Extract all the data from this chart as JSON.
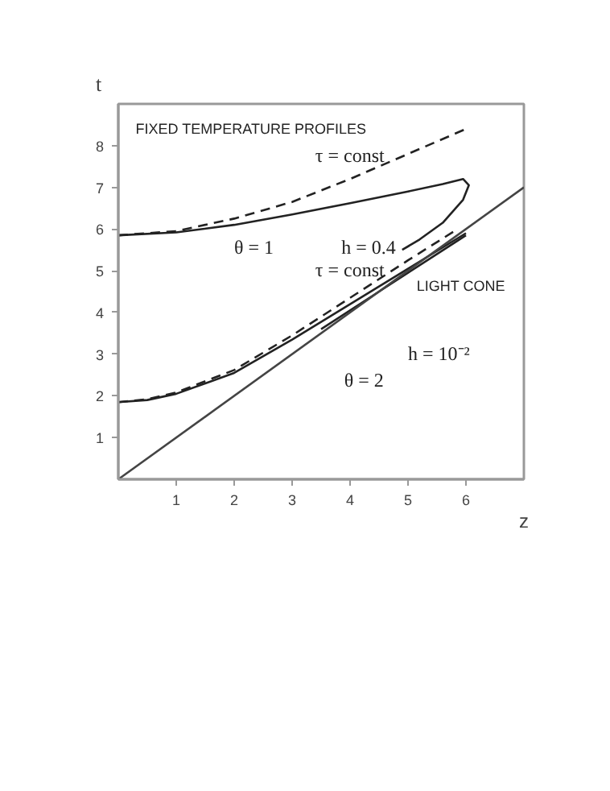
{
  "chart_data": {
    "type": "line",
    "xlabel": "z",
    "ylabel": "t",
    "xlim": [
      0,
      7
    ],
    "ylim": [
      0,
      9
    ],
    "xticks": [
      1,
      2,
      3,
      4,
      5,
      6
    ],
    "yticks": [
      1,
      2,
      3,
      4,
      5,
      6,
      7,
      8
    ],
    "grid": false,
    "marker": "none",
    "series": [
      {
        "color": "#222222",
        "line_style": "solid",
        "x": [
          0,
          1,
          2,
          3,
          4,
          5,
          5.6,
          5.95,
          6.05,
          5.95,
          5.6,
          5.2,
          4.9
        ],
        "values": [
          5.85,
          5.92,
          6.1,
          6.35,
          6.62,
          6.9,
          7.08,
          7.2,
          7.05,
          6.7,
          6.15,
          5.75,
          5.5
        ]
      },
      {
        "color": "#222222",
        "line_style": "dashed",
        "x": [
          0,
          1,
          2,
          3,
          4,
          5,
          6
        ],
        "values": [
          5.85,
          5.95,
          6.25,
          6.65,
          7.2,
          7.8,
          8.4
        ]
      },
      {
        "color": "#222222",
        "line_style": "solid",
        "x": [
          0,
          0.5,
          1,
          2,
          3,
          4,
          5,
          6
        ],
        "values": [
          1.85,
          1.9,
          2.05,
          2.55,
          3.35,
          4.2,
          5.05,
          5.9
        ]
      },
      {
        "color": "#222222",
        "line_style": "dashed",
        "x": [
          0,
          0.5,
          1,
          2,
          3,
          4,
          5,
          5.8
        ],
        "values": [
          1.85,
          1.92,
          2.08,
          2.62,
          3.45,
          4.35,
          5.25,
          5.95
        ]
      },
      {
        "color": "#222222",
        "line_style": "solid",
        "x": [
          3.5,
          4.5,
          5.5,
          6
        ],
        "values": [
          3.6,
          4.5,
          5.4,
          5.85
        ]
      },
      {
        "color": "#444444",
        "line_style": "solid",
        "x": [
          0,
          7
        ],
        "values": [
          0,
          7
        ]
      }
    ],
    "annotations": [
      "FIXED TEMPERATURE PROFILES",
      "τ = const",
      "θ = 1",
      "h = 0.4",
      "τ = const",
      "θ = 2",
      "h = 10⁻²",
      "LIGHT CONE"
    ]
  }
}
